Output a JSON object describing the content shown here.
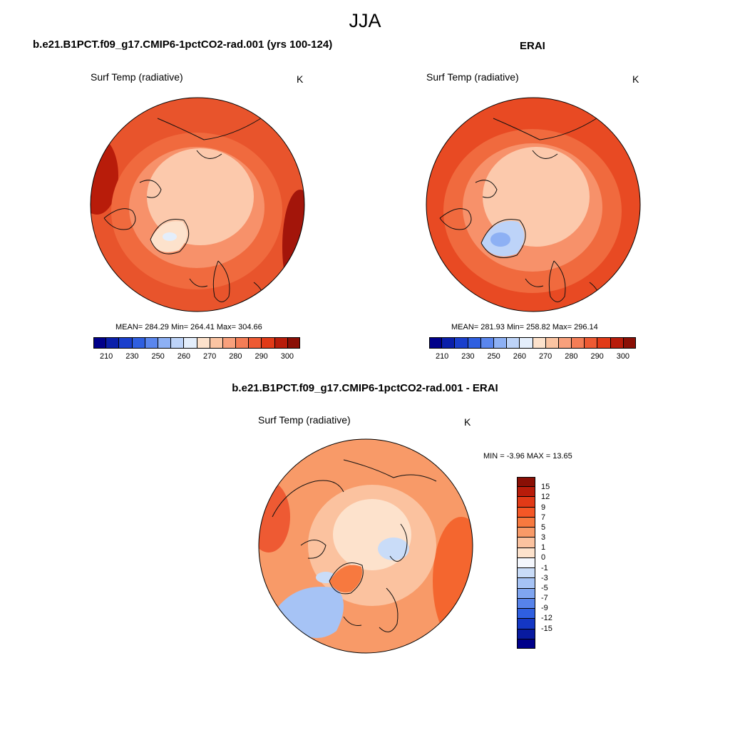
{
  "figure": {
    "title": "JJA"
  },
  "panels": {
    "model": {
      "title": "b.e21.B1PCT.f09_g17.CMIP6-1pctCO2-rad.001 (yrs 100-124)",
      "variable": "Surf Temp (radiative)",
      "units": "K",
      "stats": "MEAN= 284.29  Min= 264.41  Max= 304.66"
    },
    "obs": {
      "title": "ERAI",
      "variable": "Surf Temp (radiative)",
      "units": "K",
      "stats": "MEAN= 281.93  Min= 258.82  Max= 296.14"
    },
    "diff": {
      "title": "b.e21.B1PCT.f09_g17.CMIP6-1pctCO2-rad.001 - ERAI",
      "variable": "Surf Temp (radiative)",
      "units": "K",
      "stats": "MIN =  -3.96 MAX =  13.65"
    }
  },
  "colorbars": {
    "abs": {
      "colors": [
        "#00008a",
        "#0a1faa",
        "#1a3fcc",
        "#2f5fe0",
        "#5a86ee",
        "#8db0f4",
        "#bdd3f8",
        "#e4eefb",
        "#fde2cc",
        "#fbc4a2",
        "#f8a07c",
        "#f47d56",
        "#ee5a33",
        "#e13a17",
        "#b81c0a",
        "#8a0f05"
      ],
      "tick_labels": [
        "210",
        "230",
        "250",
        "260",
        "270",
        "280",
        "290",
        "300"
      ],
      "tick_boundaries": [
        1,
        3,
        5,
        7,
        9,
        11,
        13,
        15
      ]
    },
    "diff": {
      "colors": [
        "#8a0f05",
        "#b81c0a",
        "#e13a17",
        "#f45726",
        "#f7793f",
        "#f89a68",
        "#fbc29f",
        "#fde2cc",
        "#f4f7fd",
        "#c9dcf8",
        "#a6c3f5",
        "#7fa5f0",
        "#5783ea",
        "#2f5fe0",
        "#1437c4",
        "#081aa0",
        "#00008a"
      ],
      "tick_labels": [
        "15",
        "12",
        "9",
        "7",
        "5",
        "3",
        "1",
        "0",
        "-1",
        "-3",
        "-5",
        "-7",
        "-9",
        "-12",
        "-15"
      ]
    }
  },
  "chart_data": [
    {
      "type": "heatmap",
      "title": "b.e21.B1PCT.f09_g17.CMIP6-1pctCO2-rad.001 (yrs 100-124)",
      "projection": "north polar stereographic",
      "season": "JJA",
      "variable": "Surf Temp (radiative)",
      "units": "K",
      "mean": 284.29,
      "min": 264.41,
      "max": 304.66,
      "colorbar_levels": [
        210,
        230,
        250,
        260,
        270,
        280,
        290,
        300
      ]
    },
    {
      "type": "heatmap",
      "title": "ERAI",
      "projection": "north polar stereographic",
      "season": "JJA",
      "variable": "Surf Temp (radiative)",
      "units": "K",
      "mean": 281.93,
      "min": 258.82,
      "max": 296.14,
      "colorbar_levels": [
        210,
        230,
        250,
        260,
        270,
        280,
        290,
        300
      ]
    },
    {
      "type": "heatmap",
      "title": "b.e21.B1PCT.f09_g17.CMIP6-1pctCO2-rad.001 - ERAI",
      "projection": "north polar stereographic",
      "season": "JJA",
      "variable": "Surf Temp (radiative)",
      "units": "K",
      "min": -3.96,
      "max": 13.65,
      "colorbar_levels": [
        15,
        12,
        9,
        7,
        5,
        3,
        1,
        0,
        -1,
        -3,
        -5,
        -7,
        -9,
        -12,
        -15
      ]
    }
  ]
}
